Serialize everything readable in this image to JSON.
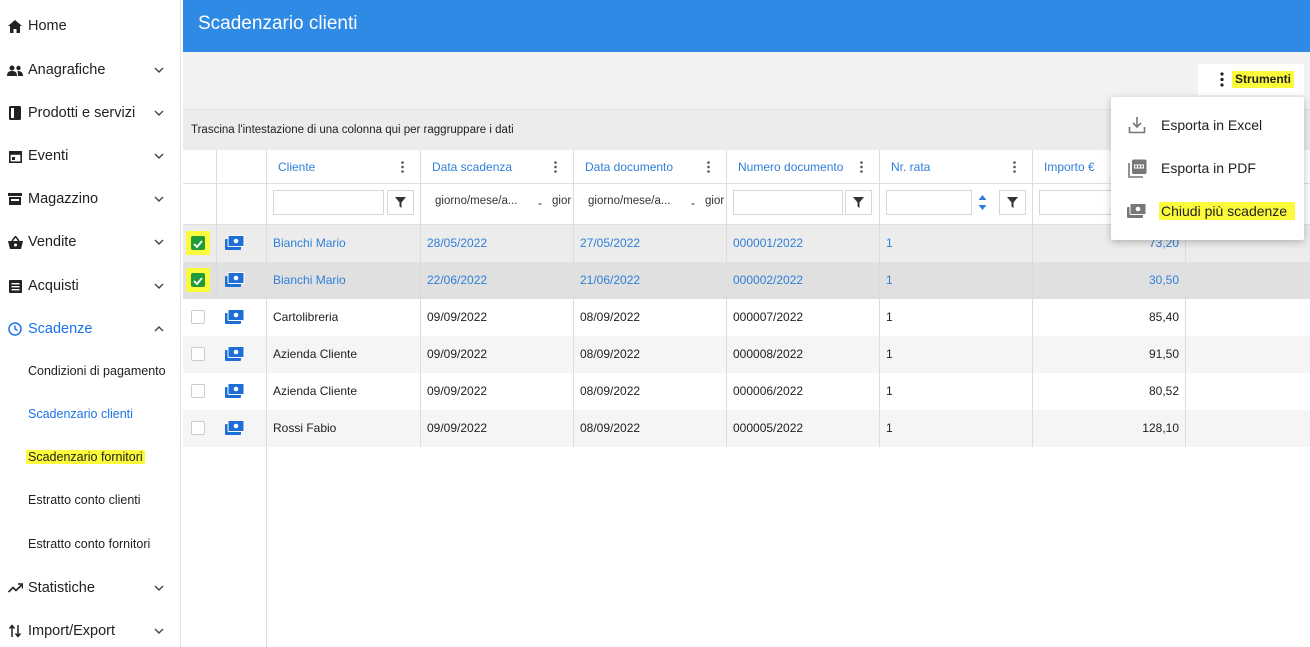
{
  "sidebar": {
    "items": [
      {
        "label": "Home",
        "icon": "home-icon"
      },
      {
        "label": "Anagrafiche",
        "icon": "people-icon"
      },
      {
        "label": "Prodotti e servizi",
        "icon": "book-icon"
      },
      {
        "label": "Eventi",
        "icon": "calendar-icon"
      },
      {
        "label": "Magazzino",
        "icon": "warehouse-icon"
      },
      {
        "label": "Vendite",
        "icon": "basket-icon"
      },
      {
        "label": "Acquisti",
        "icon": "receipt-icon"
      },
      {
        "label": "Scadenze",
        "icon": "clock-icon"
      },
      {
        "label": "Statistiche",
        "icon": "trending-icon"
      },
      {
        "label": "Import/Export",
        "icon": "import-export-icon"
      }
    ],
    "sub_items": [
      {
        "label": "Condizioni di pagamento"
      },
      {
        "label": "Scadenzario clienti"
      },
      {
        "label": "Scadenzario fornitori"
      },
      {
        "label": "Estratto conto clienti"
      },
      {
        "label": "Estratto conto fornitori"
      }
    ]
  },
  "header": {
    "title": "Scadenzario clienti"
  },
  "toolbar": {
    "strumenti_label": "Strumenti"
  },
  "group_panel": {
    "text": "Trascina l'intestazione di una colonna qui per raggruppare i dati"
  },
  "grid": {
    "columns": [
      "Cliente",
      "Data scadenza",
      "Data documento",
      "Numero documento",
      "Nr. rata",
      "Importo €"
    ],
    "filters": {
      "date_placeholder_1": "giorno/mese/a...",
      "date_placeholder_1b": "gior",
      "date_placeholder_2": "giorno/mese/a...",
      "date_placeholder_2b": "gior",
      "dash": "-"
    },
    "rows": [
      {
        "checked": true,
        "cliente": "Bianchi Mario",
        "scadenza": "28/05/2022",
        "documento": "27/05/2022",
        "numero": "000001/2022",
        "rata": "1",
        "importo": "73,20"
      },
      {
        "checked": true,
        "cliente": "Bianchi Mario",
        "scadenza": "22/06/2022",
        "documento": "21/06/2022",
        "numero": "000002/2022",
        "rata": "1",
        "importo": "30,50"
      },
      {
        "checked": false,
        "cliente": "Cartolibreria",
        "scadenza": "09/09/2022",
        "documento": "08/09/2022",
        "numero": "000007/2022",
        "rata": "1",
        "importo": "85,40"
      },
      {
        "checked": false,
        "cliente": "Azienda Cliente",
        "scadenza": "09/09/2022",
        "documento": "08/09/2022",
        "numero": "000008/2022",
        "rata": "1",
        "importo": "91,50"
      },
      {
        "checked": false,
        "cliente": "Azienda Cliente",
        "scadenza": "09/09/2022",
        "documento": "08/09/2022",
        "numero": "000006/2022",
        "rata": "1",
        "importo": "80,52"
      },
      {
        "checked": false,
        "cliente": "Rossi Fabio",
        "scadenza": "09/09/2022",
        "documento": "08/09/2022",
        "numero": "000005/2022",
        "rata": "1",
        "importo": "128,10"
      }
    ]
  },
  "menu": {
    "items": [
      {
        "label": "Esporta in Excel",
        "icon": "download-icon"
      },
      {
        "label": "Esporta in PDF",
        "icon": "pdf-icon"
      },
      {
        "label": "Chiudi più scadenze",
        "icon": "money-icon"
      }
    ]
  },
  "colors": {
    "accent": "#2f8ae5",
    "link": "#2f7fd8",
    "highlight": "#fbfb3c",
    "check": "#1f9b3a"
  }
}
